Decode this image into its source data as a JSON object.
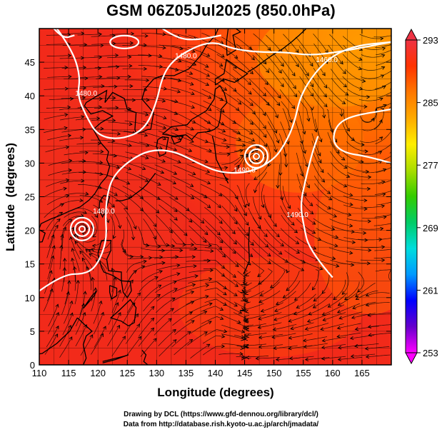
{
  "title": "GSM 06Z05Jul2025 (850.0hPa)",
  "xaxis": {
    "label": "Longitude (degrees)",
    "range": [
      110,
      170
    ],
    "ticks": [
      110,
      115,
      120,
      125,
      130,
      135,
      140,
      145,
      150,
      155,
      160,
      165
    ]
  },
  "yaxis": {
    "label": "Latitude  (degrees)",
    "range": [
      0,
      50
    ],
    "ticks": [
      0,
      5,
      10,
      15,
      20,
      25,
      30,
      35,
      40,
      45
    ]
  },
  "colorbar": {
    "ticks": [
      293,
      285,
      277,
      269,
      261,
      253
    ],
    "range": [
      253,
      293
    ],
    "colors": [
      "#ff00ff",
      "#6600cc",
      "#0000ff",
      "#0099ff",
      "#00dddd",
      "#00cc66",
      "#33cc00",
      "#aadd00",
      "#ffee00",
      "#ffaa00",
      "#ff7700",
      "#ff3300",
      "#ee3344"
    ]
  },
  "contours": {
    "labels": [
      {
        "text": "1480.0",
        "lon": 118,
        "lat": 40
      },
      {
        "text": "1480.0",
        "lon": 135,
        "lat": 45.6
      },
      {
        "text": "1460.0",
        "lon": 159,
        "lat": 45
      },
      {
        "text": "1490.0",
        "lon": 145,
        "lat": 28.6
      },
      {
        "text": "1480.0",
        "lon": 121,
        "lat": 22.5
      },
      {
        "text": "1490.0",
        "lon": 154,
        "lat": 22
      }
    ],
    "line_color": "#ffffff"
  },
  "lows": [
    {
      "lon": 117.3,
      "lat": 20.2
    },
    {
      "lon": 147,
      "lat": 31
    }
  ],
  "credits": [
    "Drawing by DCL (https://www.gfd-dennou.org/library/dcl/)",
    "Data from http://database.rish.kyoto-u.ac.jp/arch/jmadata/"
  ]
}
